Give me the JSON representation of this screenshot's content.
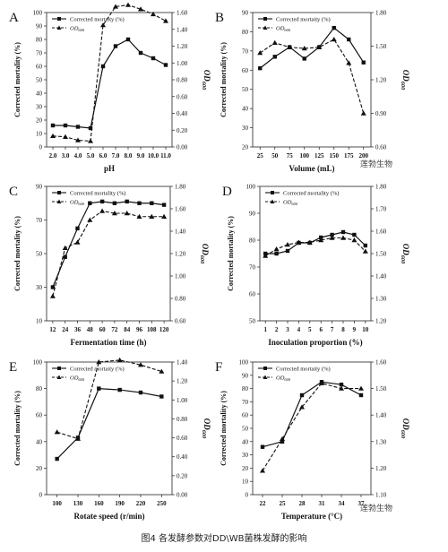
{
  "caption": "图4 各发酵参数对DD\\WB菌株发酵的影响",
  "watermark": "莲勃生物",
  "chart_data": [
    {
      "panel": "A",
      "type": "line",
      "xlabel": "pH",
      "ylabel_left": "Corrected mortality (%)",
      "ylabel_right": "OD600",
      "categories": [
        "2.0",
        "3.0",
        "4.0",
        "5.0",
        "6.0",
        "7.0",
        "8.0",
        "9.0",
        "10.0",
        "11.0"
      ],
      "ylim_left": [
        0,
        100
      ],
      "yticks_left": [
        "0",
        "10",
        "20",
        "30",
        "40",
        "50",
        "60",
        "70",
        "80",
        "90",
        "100"
      ],
      "ylim_right": [
        0,
        1.6
      ],
      "yticks_right": [
        "0.00",
        "0.20",
        "0.40",
        "0.60",
        "0.80",
        "1.00",
        "1.20",
        "1.40",
        "1.60"
      ],
      "legend": [
        "Corrected mortaity (%)",
        "OD600"
      ],
      "series": [
        {
          "name": "Corrected mortaity (%)",
          "axis": "left",
          "values": [
            16,
            16,
            15,
            14,
            60,
            75,
            80,
            70,
            66,
            61
          ]
        },
        {
          "name": "OD600",
          "axis": "right",
          "values": [
            0.13,
            0.12,
            0.08,
            0.07,
            1.45,
            1.67,
            1.69,
            1.64,
            1.58,
            1.5
          ]
        }
      ]
    },
    {
      "panel": "B",
      "type": "line",
      "xlabel": "Volume (mL)",
      "ylabel_left": "Corrected mortality (%)",
      "ylabel_right": "OD600",
      "categories": [
        "25",
        "50",
        "75",
        "100",
        "125",
        "150",
        "175",
        "200"
      ],
      "ylim_left": [
        20,
        90
      ],
      "yticks_left": [
        "20",
        "30",
        "40",
        "50",
        "60",
        "70",
        "80",
        "90"
      ],
      "ylim_right": [
        0.6,
        1.8
      ],
      "yticks_right": [
        "0.60",
        "0.90",
        "1.20",
        "1.50",
        "1.80"
      ],
      "legend": [
        "Corrected mortaity (%)",
        "OD600"
      ],
      "series": [
        {
          "name": "Corrected mortaity (%)",
          "axis": "left",
          "values": [
            61,
            67,
            72,
            66,
            72,
            82,
            76,
            64
          ]
        },
        {
          "name": "OD600",
          "axis": "right",
          "values": [
            1.44,
            1.53,
            1.49,
            1.48,
            1.49,
            1.56,
            1.35,
            0.9
          ]
        }
      ]
    },
    {
      "panel": "C",
      "type": "line",
      "xlabel": "Fermentation time (h)",
      "ylabel_left": "Corrected mortality (%)",
      "ylabel_right": "OD600",
      "categories": [
        "12",
        "24",
        "36",
        "48",
        "60",
        "72",
        "84",
        "96",
        "108",
        "120"
      ],
      "ylim_left": [
        10,
        90
      ],
      "yticks_left": [
        "10",
        "30",
        "50",
        "70",
        "90"
      ],
      "ylim_right": [
        0.6,
        1.8
      ],
      "yticks_right": [
        "0.60",
        "0.80",
        "1.00",
        "1.20",
        "1.40",
        "1.60",
        "1.80"
      ],
      "legend": [
        "Corrected mortality (%)",
        "OD600"
      ],
      "series": [
        {
          "name": "Corrected mortality (%)",
          "axis": "left",
          "values": [
            30,
            48,
            65,
            80,
            81,
            80,
            81,
            80,
            80,
            79
          ]
        },
        {
          "name": "OD600",
          "axis": "right",
          "values": [
            0.82,
            1.25,
            1.3,
            1.5,
            1.58,
            1.56,
            1.56,
            1.53,
            1.53,
            1.53
          ]
        }
      ]
    },
    {
      "panel": "D",
      "type": "line",
      "xlabel": "Inoculation proportion (%)",
      "ylabel_left": "Corrected mortality (%)",
      "ylabel_right": "OD600",
      "categories": [
        "1",
        "2",
        "3",
        "4",
        "5",
        "6",
        "7",
        "8",
        "9",
        "10"
      ],
      "ylim_left": [
        50,
        100
      ],
      "yticks_left": [
        "50",
        "60",
        "70",
        "80",
        "90",
        "100"
      ],
      "ylim_right": [
        1.2,
        1.8
      ],
      "yticks_right": [
        "1.20",
        "1.30",
        "1.40",
        "1.50",
        "1.60",
        "1.70",
        "1.80"
      ],
      "legend": [
        "Corrected mortality (%)",
        "OD600"
      ],
      "series": [
        {
          "name": "Corrected mortality (%)",
          "axis": "left",
          "values": [
            75,
            75,
            76,
            79,
            79,
            81,
            82,
            83,
            82,
            78
          ]
        },
        {
          "name": "OD600",
          "axis": "right",
          "values": [
            1.49,
            1.52,
            1.54,
            1.55,
            1.55,
            1.56,
            1.57,
            1.57,
            1.56,
            1.51
          ]
        }
      ]
    },
    {
      "panel": "E",
      "type": "line",
      "xlabel": "Rotate speed (r/min)",
      "ylabel_left": "Corrected mortality (%)",
      "ylabel_right": "OD600",
      "categories": [
        "100",
        "130",
        "160",
        "190",
        "220",
        "250"
      ],
      "ylim_left": [
        0,
        100
      ],
      "yticks_left": [
        "0",
        "20",
        "40",
        "60",
        "80",
        "100"
      ],
      "ylim_right": [
        0,
        1.4
      ],
      "yticks_right": [
        "0.00",
        "0.20",
        "0.40",
        "0.60",
        "0.80",
        "1.00",
        "1.20",
        "1.40"
      ],
      "legend": [
        "Corrected mortaity (%)",
        "OD600"
      ],
      "series": [
        {
          "name": "Corrected mortaity (%)",
          "axis": "left",
          "values": [
            27,
            43,
            80,
            79,
            77,
            74
          ]
        },
        {
          "name": "OD600",
          "axis": "right",
          "values": [
            0.66,
            0.59,
            1.4,
            1.42,
            1.37,
            1.3
          ]
        }
      ]
    },
    {
      "panel": "F",
      "type": "line",
      "xlabel": "Temperature (°C)",
      "ylabel_left": "Corrected mortality (%)",
      "ylabel_right": "OD600",
      "categories": [
        "22",
        "25",
        "28",
        "31",
        "34",
        "37"
      ],
      "ylim_left": [
        0,
        100
      ],
      "yticks_left": [
        "0",
        "10",
        "20",
        "30",
        "40",
        "50",
        "60",
        "70",
        "80",
        "90",
        "100"
      ],
      "ylim_right": [
        1.1,
        1.6
      ],
      "yticks_right": [
        "1.10",
        "1.20",
        "1.30",
        "1.40",
        "1.50",
        "1.60"
      ],
      "legend": [
        "Corrected mortaity (%)",
        "OD600"
      ],
      "series": [
        {
          "name": "Corrected mortaity (%)",
          "axis": "left",
          "values": [
            36,
            40,
            75,
            85,
            83,
            75
          ]
        },
        {
          "name": "OD600",
          "axis": "right",
          "values": [
            1.19,
            1.31,
            1.43,
            1.52,
            1.5,
            1.5
          ]
        }
      ]
    }
  ]
}
